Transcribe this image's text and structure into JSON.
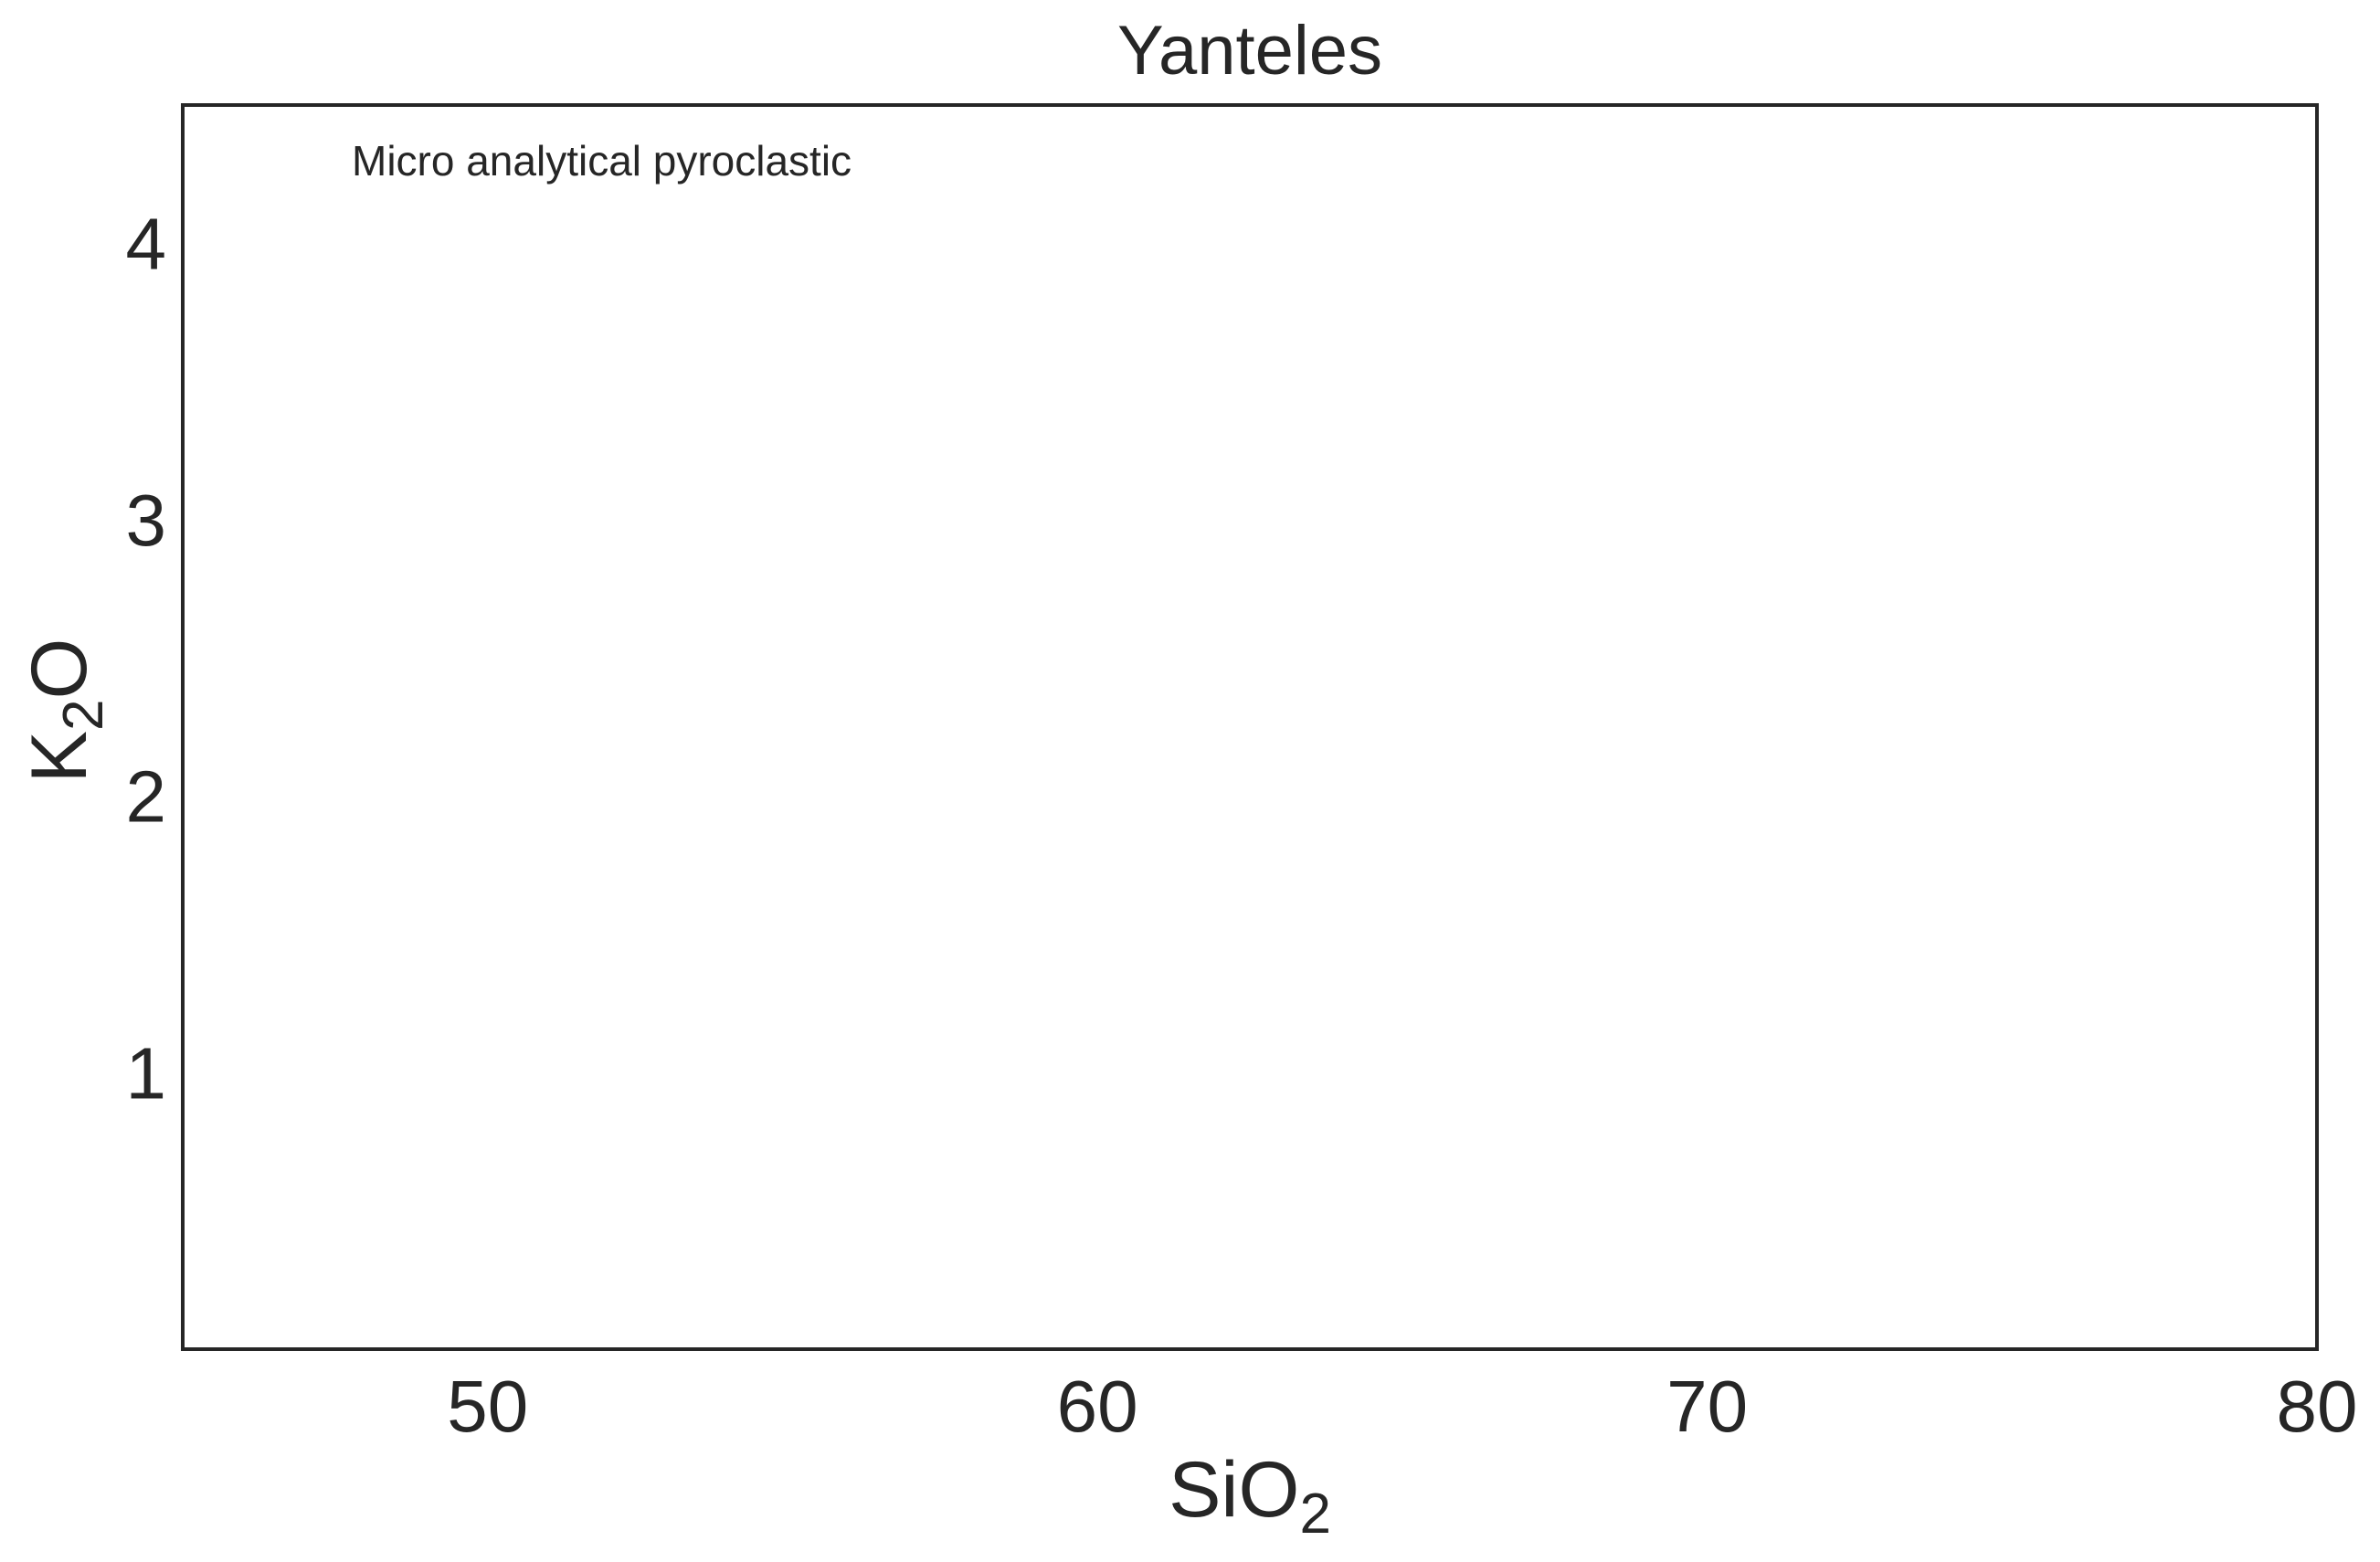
{
  "chart_data": {
    "type": "scatter",
    "title": "Yanteles",
    "xlabel": {
      "main": "SiO",
      "sub": "2"
    },
    "ylabel": {
      "main": "K",
      "sub": "2",
      "tail": "O"
    },
    "annotation": "Micro analytical pyroclastic",
    "xlim": [
      45,
      80
    ],
    "ylim": [
      0,
      4.5
    ],
    "xticks": [
      50,
      60,
      70,
      80
    ],
    "yticks": [
      1,
      2,
      3,
      4
    ],
    "grid": false,
    "series": [],
    "colors": {
      "text": "#262626",
      "axes": "#262626",
      "background": "#ffffff"
    }
  }
}
